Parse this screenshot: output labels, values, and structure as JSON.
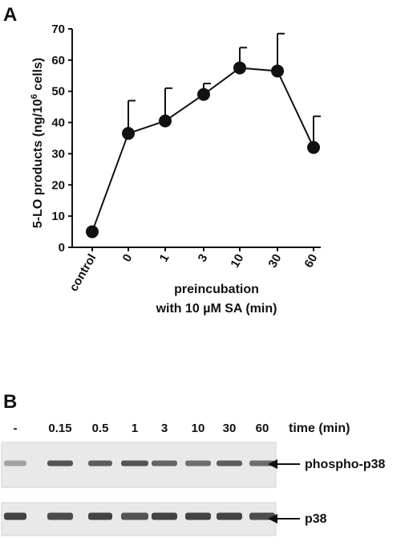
{
  "panel_a": {
    "letter": "A"
  },
  "panel_b": {
    "letter": "B",
    "lanes": [
      "-",
      "0.15",
      "0.5",
      "1",
      "3",
      "10",
      "30",
      "60"
    ],
    "time_label": "time (min)",
    "blots": [
      {
        "label": "phospho-p38",
        "band_intensity": [
          0.35,
          0.8,
          0.75,
          0.8,
          0.7,
          0.65,
          0.75,
          0.65
        ]
      },
      {
        "label": "p38",
        "band_intensity": [
          0.9,
          0.85,
          0.9,
          0.8,
          0.9,
          0.9,
          0.9,
          0.85
        ]
      }
    ]
  },
  "chart_data": {
    "type": "line",
    "categories": [
      "control",
      "0",
      "1",
      "3",
      "10",
      "30",
      "60"
    ],
    "series": [
      {
        "values": [
          5,
          36.5,
          40.5,
          49,
          57.5,
          56.5,
          32
        ],
        "error_upper": [
          null,
          47,
          51,
          52.5,
          64,
          68.5,
          42
        ]
      }
    ],
    "ylabel": "5-LO products (ng/10⁶ cells)",
    "ylabel_parts": {
      "main": "5-LO products (ng/10",
      "sup": "6",
      "end": " cells)"
    },
    "xlabel": "preincubation with 10 µM SA (min)",
    "xlabel_lines": [
      "preincubation",
      "with 10 µM SA (min)"
    ],
    "ylim": [
      0,
      70
    ],
    "yticks": [
      "0",
      "10",
      "20",
      "30",
      "40",
      "50",
      "60",
      "70"
    ],
    "grid": false
  }
}
